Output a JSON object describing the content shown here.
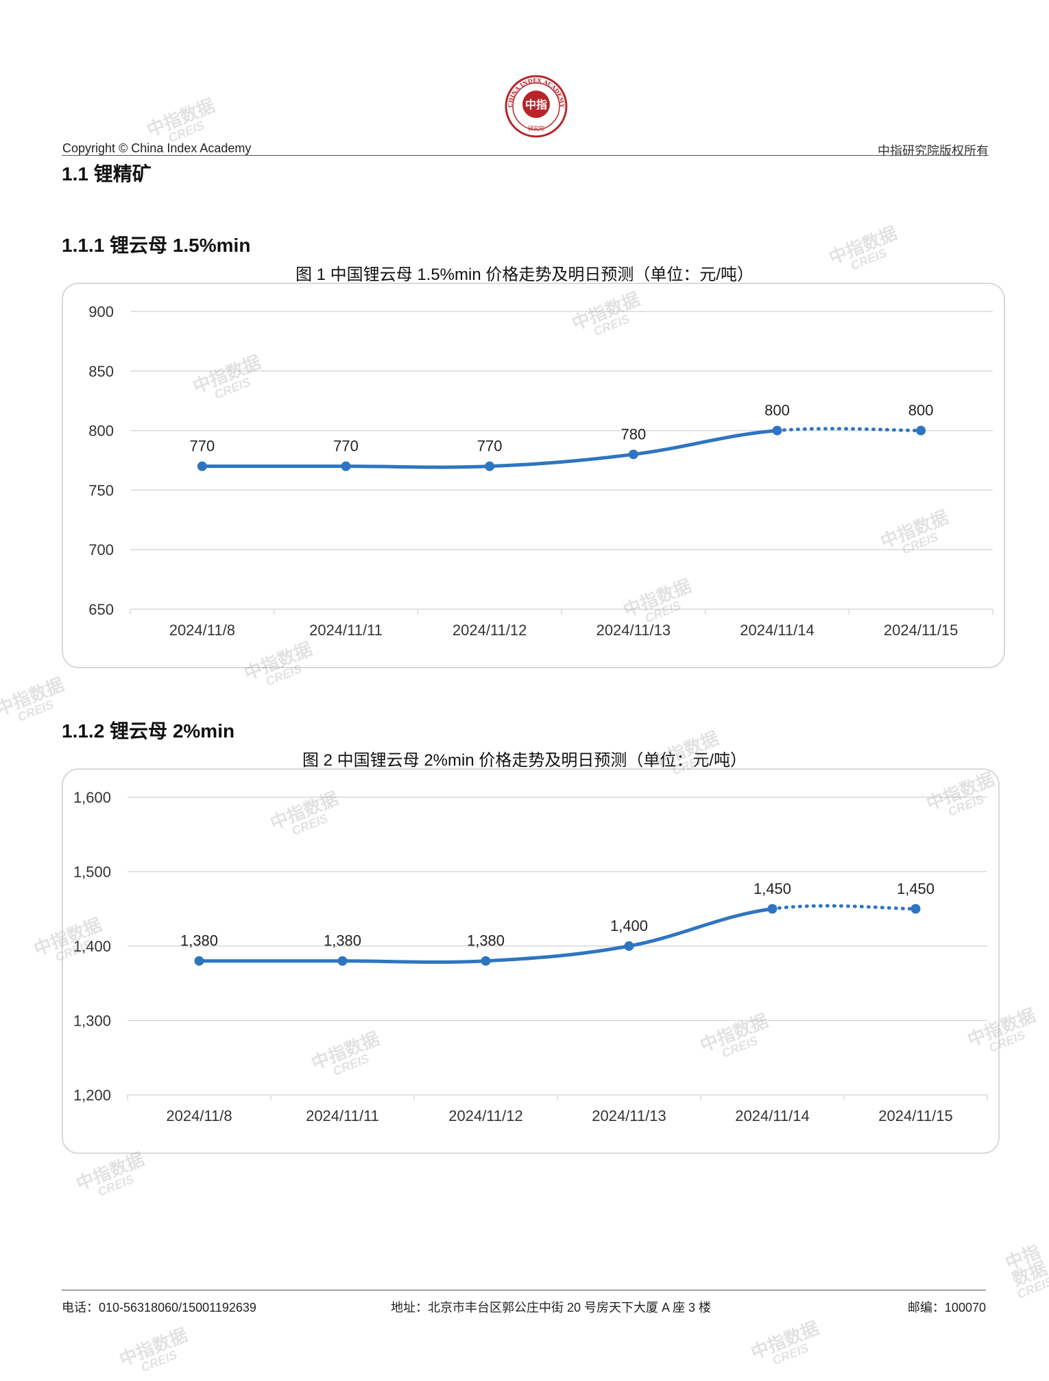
{
  "header": {
    "copyright": "Copyright © China Index Academy",
    "rights": "中指研究院版权所有",
    "seal_center": "中指",
    "seal_ring": "CHINA INDEX ACADEMY",
    "seal_bottom": "研究院"
  },
  "sections": {
    "h1": "1.1 锂精矿",
    "h2a": "1.1.1 锂云母 1.5%min",
    "h2b": "1.1.2 锂云母 2%min"
  },
  "watermark": {
    "text": "中指数据",
    "sub": "CREIS"
  },
  "chart_data": [
    {
      "type": "line",
      "title": "图 1 中国锂云母 1.5%min 价格走势及明日预测（单位：元/吨）",
      "categories": [
        "2024/11/8",
        "2024/11/11",
        "2024/11/12",
        "2024/11/13",
        "2024/11/14",
        "2024/11/15"
      ],
      "values": [
        770,
        770,
        770,
        780,
        800,
        800
      ],
      "data_labels": [
        "770",
        "770",
        "770",
        "780",
        "800",
        "800"
      ],
      "forecast_from_index": 4,
      "ylim": [
        650,
        900
      ],
      "yticks": [
        650,
        700,
        750,
        800,
        850,
        900
      ],
      "ytick_labels": [
        "650",
        "700",
        "750",
        "800",
        "850",
        "900"
      ],
      "color": "#2e75c0",
      "grid": true
    },
    {
      "type": "line",
      "title": "图 2 中国锂云母 2%min 价格走势及明日预测（单位：元/吨）",
      "categories": [
        "2024/11/8",
        "2024/11/11",
        "2024/11/12",
        "2024/11/13",
        "2024/11/14",
        "2024/11/15"
      ],
      "values": [
        1380,
        1380,
        1380,
        1400,
        1450,
        1450
      ],
      "data_labels": [
        "1,380",
        "1,380",
        "1,380",
        "1,400",
        "1,450",
        "1,450"
      ],
      "forecast_from_index": 4,
      "ylim": [
        1200,
        1600
      ],
      "yticks": [
        1200,
        1300,
        1400,
        1500,
        1600
      ],
      "ytick_labels": [
        "1,200",
        "1,300",
        "1,400",
        "1,500",
        "1,600"
      ],
      "color": "#2e75c0",
      "grid": true
    }
  ],
  "footer": {
    "phone": "电话：010-56318060/15001192639",
    "address": "地址：北京市丰台区郭公庄中街 20 号房天下大厦 A 座 3 楼",
    "postcode": "邮编：100070"
  }
}
